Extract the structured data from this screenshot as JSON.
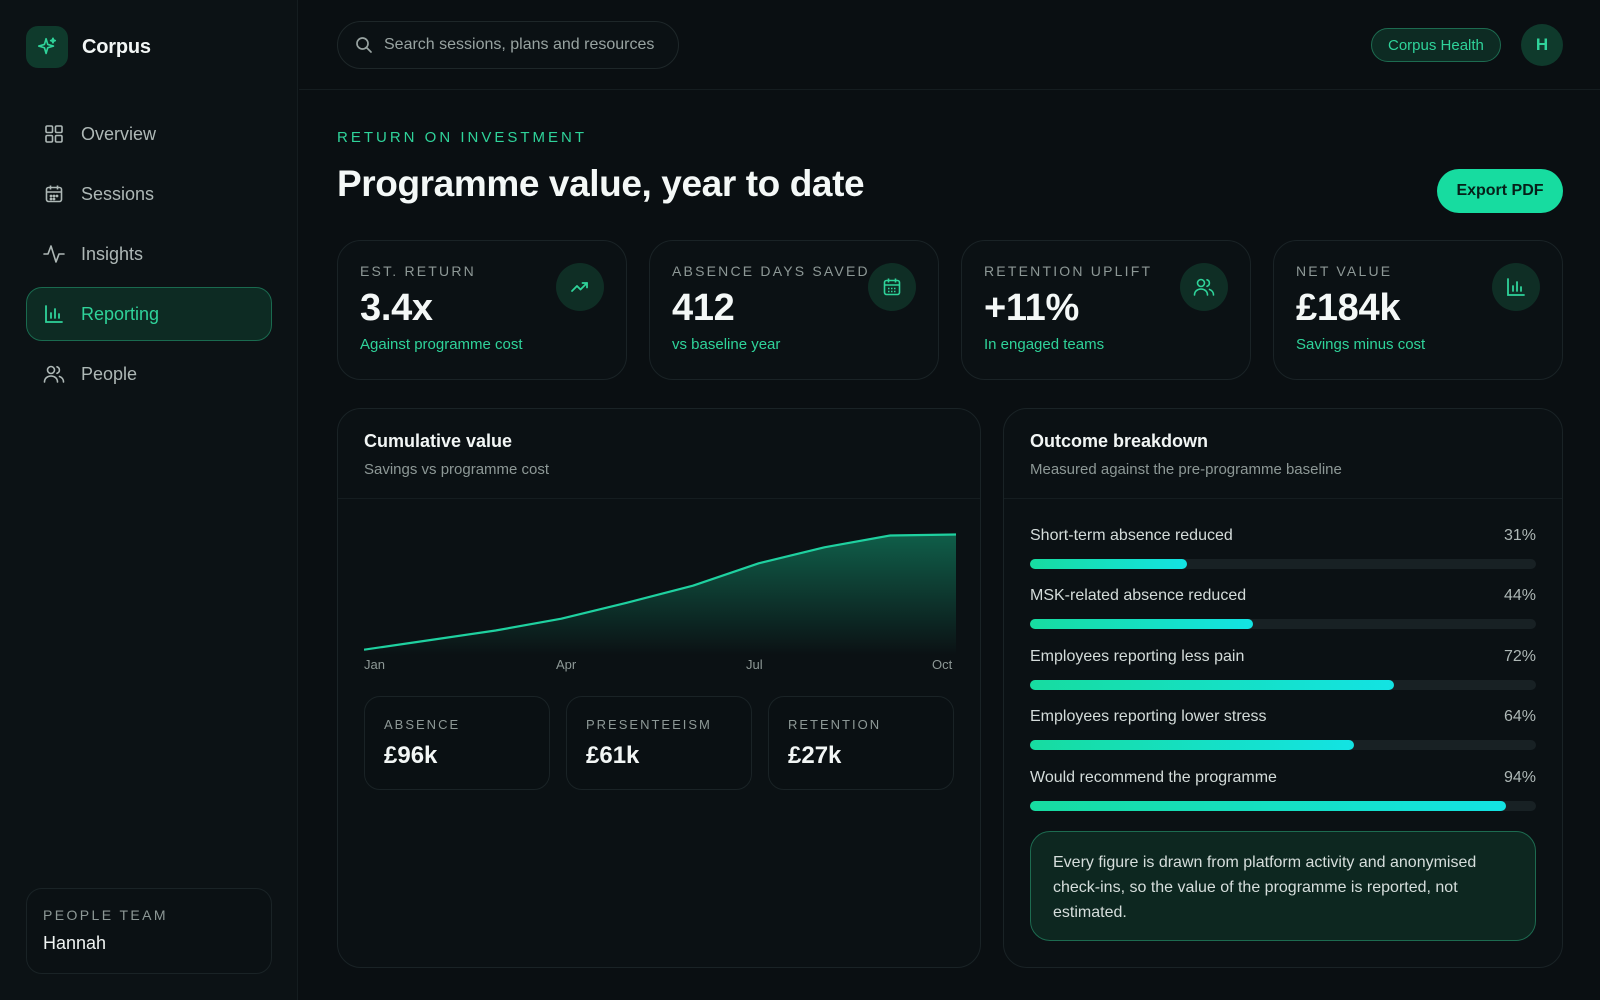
{
  "brand": {
    "name": "Corpus"
  },
  "nav": [
    {
      "label": "Overview",
      "icon": "grid-icon",
      "active": false
    },
    {
      "label": "Sessions",
      "icon": "calendar-icon",
      "active": false
    },
    {
      "label": "Insights",
      "icon": "pulse-icon",
      "active": false
    },
    {
      "label": "Reporting",
      "icon": "bar-chart-icon",
      "active": true
    },
    {
      "label": "People",
      "icon": "users-icon",
      "active": false
    }
  ],
  "sidebar_card": {
    "caption": "PEOPLE TEAM",
    "name": "Hannah"
  },
  "search": {
    "placeholder": "Search sessions, plans and resources"
  },
  "org_pill": "Corpus Health",
  "avatar_initial": "H",
  "eyebrow": "RETURN ON INVESTMENT",
  "title": "Programme value, year to date",
  "export_label": "Export PDF",
  "kpis": [
    {
      "caption": "EST. RETURN",
      "value": "3.4x",
      "sub": "Against programme cost",
      "icon": "trending-up-icon"
    },
    {
      "caption": "ABSENCE DAYS SAVED",
      "value": "412",
      "sub": "vs baseline year",
      "icon": "calendar-icon"
    },
    {
      "caption": "RETENTION UPLIFT",
      "value": "+11%",
      "sub": "In engaged teams",
      "icon": "users-icon"
    },
    {
      "caption": "NET VALUE",
      "value": "£184k",
      "sub": "Savings minus cost",
      "icon": "bar-chart-icon"
    }
  ],
  "cumulative": {
    "title": "Cumulative value",
    "subtitle": "Savings vs programme cost",
    "ticks": [
      "Jan",
      "Apr",
      "Jul",
      "Oct"
    ],
    "breakdown": [
      {
        "caption": "ABSENCE",
        "value": "£96k"
      },
      {
        "caption": "PRESENTEEISM",
        "value": "£61k"
      },
      {
        "caption": "RETENTION",
        "value": "£27k"
      }
    ]
  },
  "chart_data": {
    "type": "area",
    "x": [
      "Jan",
      "Feb",
      "Mar",
      "Apr",
      "May",
      "Jun",
      "Jul",
      "Aug",
      "Sep",
      "Oct"
    ],
    "series": [
      {
        "values": [
          5,
          14,
          23,
          34,
          49,
          65,
          86,
          101,
          112,
          113
        ]
      }
    ],
    "ylim": [
      0,
      120
    ],
    "grid": false,
    "line_color": "#1fd1a0"
  },
  "outcomes": {
    "title": "Outcome breakdown",
    "subtitle": "Measured against the pre-programme baseline",
    "items": [
      {
        "label": "Short-term absence reduced",
        "pct_label": "31%",
        "value": 0.31
      },
      {
        "label": "MSK-related absence reduced",
        "pct_label": "44%",
        "value": 0.44
      },
      {
        "label": "Employees reporting less pain",
        "pct_label": "72%",
        "value": 0.72
      },
      {
        "label": "Employees reporting lower stress",
        "pct_label": "64%",
        "value": 0.64
      },
      {
        "label": "Would recommend the programme",
        "pct_label": "94%",
        "value": 0.94
      }
    ],
    "note": "Every figure is drawn from platform activity and anonymised check-ins, so the value of the programme is reported, not estimated."
  },
  "colors": {
    "accent": "#17dca0",
    "accent_text": "#2fd39a",
    "background": "#0a0f12"
  }
}
